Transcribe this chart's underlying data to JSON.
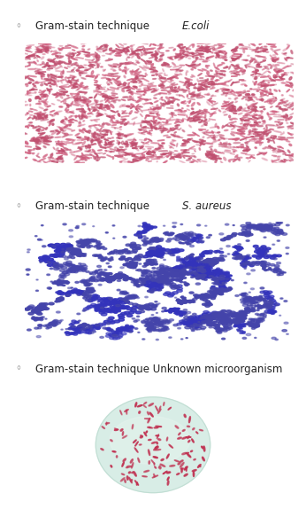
{
  "background_color": "#ffffff",
  "bullet": "◦",
  "label_fontsize": 8.5,
  "panel_bg_ecoli": "#ffffff",
  "panel_bg_saureus": "#ffffff",
  "panel_bg_oval": "#d8ede6",
  "oval_edge_color": "#b8d8cc",
  "ecoli_color": "#d06080",
  "ecoli_color2": "#c05070",
  "saureus_color": "#4444aa",
  "saureus_color2": "#3333bb",
  "unknown_color": "#c03050",
  "figure_bg": "#ffffff",
  "seed1": 42,
  "seed2": 123,
  "seed3": 77,
  "label1_normal": "Gram-stain technique ",
  "label1_italic": "E.coli",
  "label2_normal": "Gram-stain technique ",
  "label2_italic": "S. aureus",
  "label3": "Gram-stain technique Unknown microorganism"
}
